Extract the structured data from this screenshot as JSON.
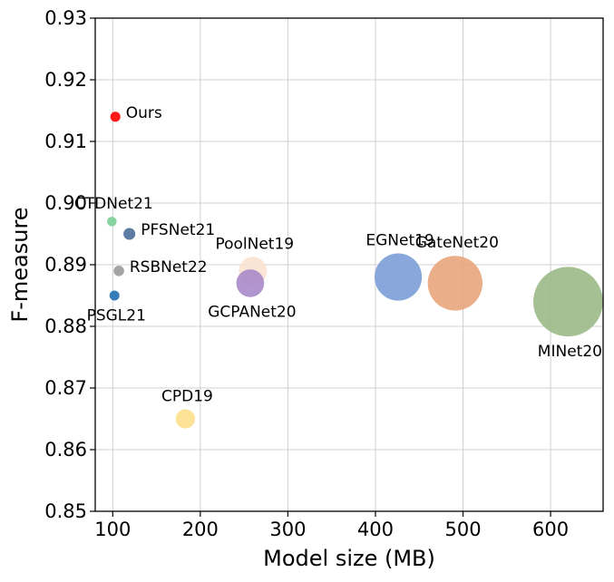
{
  "chart_data": {
    "type": "scatter",
    "title": "",
    "xlabel": "Model size (MB)",
    "ylabel": "F-measure",
    "xlim": [
      80,
      660
    ],
    "ylim": [
      0.85,
      0.93
    ],
    "x_ticks": [
      100,
      200,
      300,
      400,
      500,
      600
    ],
    "y_ticks": [
      0.85,
      0.86,
      0.87,
      0.88,
      0.89,
      0.9,
      0.91,
      0.92,
      0.93
    ],
    "x_tick_labels": [
      "100",
      "200",
      "300",
      "400",
      "500",
      "600"
    ],
    "y_tick_labels": [
      "0.85",
      "0.86",
      "0.87",
      "0.88",
      "0.89",
      "0.90",
      "0.91",
      "0.92",
      "0.93"
    ],
    "grid": true,
    "size_encodes": "Model size (MB)",
    "points": [
      {
        "name": "Ours",
        "x": 103,
        "y": 0.914,
        "color": "#ff0000",
        "label_pos": "right"
      },
      {
        "name": "CTDNet21",
        "x": 99,
        "y": 0.897,
        "color": "#7dcf96",
        "label_pos": "above"
      },
      {
        "name": "PFSNet21",
        "x": 119,
        "y": 0.895,
        "color": "#4b6e99",
        "label_pos": "right"
      },
      {
        "name": "RSBNet22",
        "x": 107,
        "y": 0.889,
        "color": "#9a9a9a",
        "label_pos": "right"
      },
      {
        "name": "PSGL21",
        "x": 102,
        "y": 0.885,
        "color": "#2070b4",
        "label_pos": "below"
      },
      {
        "name": "PoolNet19",
        "x": 260,
        "y": 0.889,
        "color": "#fbe3d0",
        "label_pos": "above"
      },
      {
        "name": "GCPANet20",
        "x": 257,
        "y": 0.887,
        "color": "#a98ac9",
        "label_pos": "below"
      },
      {
        "name": "EGNet19",
        "x": 426,
        "y": 0.888,
        "color": "#7b9dd6",
        "label_pos": "above"
      },
      {
        "name": "GateNet20",
        "x": 491,
        "y": 0.887,
        "color": "#e8a57b",
        "label_pos": "above"
      },
      {
        "name": "MINet20",
        "x": 620,
        "y": 0.884,
        "color": "#9bba88",
        "label_pos": "below"
      },
      {
        "name": "CPD19",
        "x": 183,
        "y": 0.865,
        "color": "#fde08a",
        "label_pos": "above"
      }
    ]
  }
}
